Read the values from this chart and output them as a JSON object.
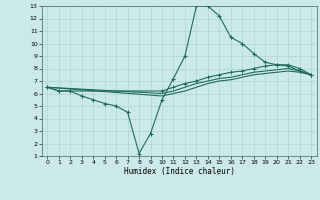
{
  "title": "",
  "xlabel": "Humidex (Indice chaleur)",
  "xlim": [
    -0.5,
    23.5
  ],
  "ylim": [
    1,
    13
  ],
  "xticks": [
    0,
    1,
    2,
    3,
    4,
    5,
    6,
    7,
    8,
    9,
    10,
    11,
    12,
    13,
    14,
    15,
    16,
    17,
    18,
    19,
    20,
    21,
    22,
    23
  ],
  "yticks": [
    1,
    2,
    3,
    4,
    5,
    6,
    7,
    8,
    9,
    10,
    11,
    12,
    13
  ],
  "background_color": "#cce9e9",
  "line_color": "#1e6b5e",
  "grid_color": "#aacfcf",
  "line1_x": [
    0,
    1,
    2,
    3,
    4,
    5,
    6,
    7,
    8,
    9,
    10,
    11,
    12,
    13,
    14,
    15,
    16,
    17,
    18,
    19,
    20,
    21,
    22,
    23
  ],
  "line1_y": [
    6.5,
    6.2,
    6.2,
    5.8,
    5.5,
    5.2,
    5.0,
    4.5,
    1.2,
    2.8,
    5.5,
    7.2,
    9.0,
    13.0,
    13.0,
    12.2,
    10.5,
    10.0,
    9.2,
    8.5,
    8.3,
    8.2,
    7.8,
    7.5
  ],
  "line2_x": [
    0,
    1,
    2,
    10,
    11,
    12,
    13,
    14,
    15,
    16,
    17,
    18,
    19,
    20,
    21,
    22,
    23
  ],
  "line2_y": [
    6.5,
    6.2,
    6.2,
    6.2,
    6.5,
    6.8,
    7.0,
    7.3,
    7.5,
    7.7,
    7.8,
    8.0,
    8.2,
    8.3,
    8.3,
    8.0,
    7.5
  ],
  "line3_x": [
    0,
    10,
    11,
    12,
    13,
    14,
    15,
    16,
    17,
    18,
    19,
    20,
    21,
    22,
    23
  ],
  "line3_y": [
    6.5,
    6.0,
    6.2,
    6.5,
    6.8,
    7.0,
    7.2,
    7.3,
    7.5,
    7.7,
    7.8,
    7.9,
    8.0,
    7.8,
    7.5
  ],
  "line4_x": [
    0,
    10,
    11,
    12,
    13,
    14,
    15,
    16,
    17,
    18,
    19,
    20,
    21,
    22,
    23
  ],
  "line4_y": [
    6.5,
    5.8,
    6.0,
    6.2,
    6.5,
    6.8,
    7.0,
    7.1,
    7.3,
    7.5,
    7.6,
    7.7,
    7.8,
    7.7,
    7.5
  ]
}
